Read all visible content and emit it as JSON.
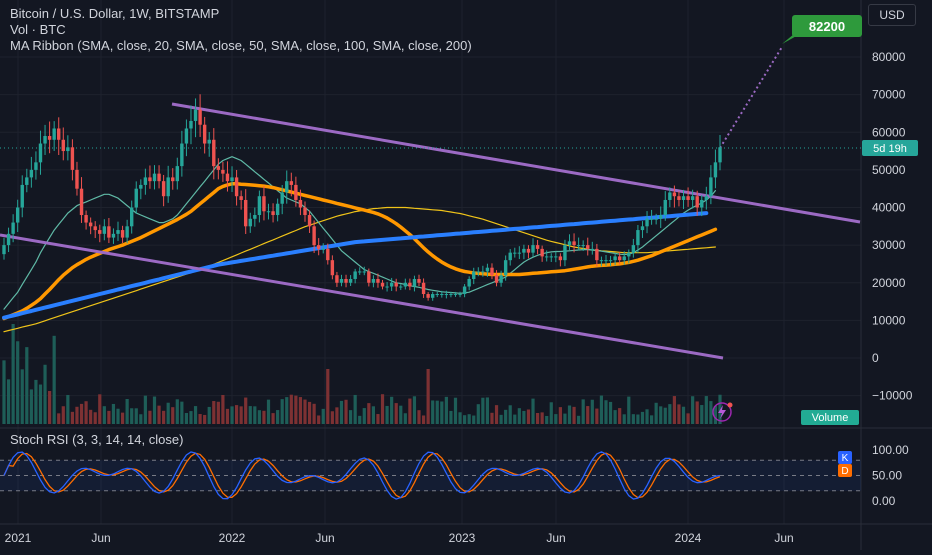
{
  "symbol": {
    "title": "Bitcoin / U.S. Dollar, 1W, BITSTAMP"
  },
  "indicators": {
    "volume": "Vol · BTC",
    "ma_ribbon": "MA Ribbon (SMA, close, 20, SMA, close, 50, SMA, close, 100, SMA, close, 200)",
    "stoch": "Stoch RSI (3, 3, 14, 14, close)"
  },
  "currency_button": "USD",
  "price_axis": [
    "80000",
    "70000",
    "60000",
    "50000",
    "40000",
    "30000",
    "20000",
    "10000",
    "0",
    "−10000"
  ],
  "target_label": "82200",
  "countdown_label": "5d 19h",
  "volume_label": "Volume",
  "stoch_axis": [
    "100.00",
    "50.00",
    "0.00"
  ],
  "stoch_badges": {
    "k": "K",
    "d": "D"
  },
  "time_axis": [
    "2021",
    "Jun",
    "2022",
    "Jun",
    "2023",
    "Jun",
    "2024",
    "Jun"
  ],
  "colors": {
    "up": "#26a69a",
    "down": "#ef5350",
    "channel": "#9c6ac4",
    "ma20": "#5fb9a6",
    "ma50": "#ff9800",
    "ma100": "#f0c419",
    "ma200": "#2a7fff",
    "stoch_k": "#2962ff",
    "stoch_d": "#ff6d00"
  },
  "chart_data": {
    "type": "candlestick",
    "y_range": [
      -15000,
      92000
    ],
    "weekly_close": [
      30000,
      33000,
      36000,
      40000,
      46000,
      48000,
      50000,
      52000,
      57000,
      59000,
      58000,
      61000,
      58000,
      55000,
      56000,
      50000,
      45000,
      38000,
      36000,
      35000,
      34000,
      33000,
      35000,
      32000,
      33000,
      34000,
      32000,
      35000,
      40000,
      45000,
      46000,
      48000,
      47000,
      49000,
      47000,
      43000,
      48000,
      47000,
      51000,
      57000,
      61000,
      63000,
      66000,
      62000,
      57000,
      58000,
      51000,
      50000,
      49000,
      47000,
      48000,
      43000,
      42000,
      35000,
      37000,
      38000,
      43000,
      39000,
      39000,
      38000,
      41000,
      44000,
      47000,
      46000,
      42000,
      40000,
      38000,
      35000,
      30000,
      29000,
      29000,
      26000,
      22000,
      20000,
      21000,
      20000,
      21000,
      23000,
      23000,
      23000,
      20000,
      21000,
      20000,
      19000,
      19000,
      20000,
      19000,
      19000,
      20000,
      19000,
      21000,
      20000,
      17000,
      16000,
      17000,
      17000,
      17000,
      17000,
      17000,
      17000,
      17000,
      19000,
      21000,
      23000,
      23000,
      23000,
      24000,
      22000,
      20000,
      22000,
      26000,
      28000,
      28000,
      28000,
      29000,
      28000,
      30000,
      29000,
      27000,
      27000,
      27000,
      27000,
      26000,
      30000,
      31000,
      30000,
      30000,
      30000,
      29000,
      29000,
      26000,
      26000,
      26000,
      26000,
      27000,
      26000,
      27000,
      28000,
      30000,
      34000,
      35000,
      37000,
      37000,
      37000,
      38000,
      42000,
      44000,
      43000,
      42000,
      43000,
      42000,
      43000,
      40000,
      42000,
      43000,
      48000,
      52000,
      56000
    ],
    "ma20": [
      13000,
      14500,
      16000,
      17500,
      19500,
      21500,
      23500,
      25500,
      28000,
      30000,
      32000,
      34000,
      35500,
      37000,
      38500,
      39500,
      40500,
      41000,
      41500,
      42000,
      42500,
      43000,
      43500,
      43500,
      43000,
      42500,
      41500,
      40500,
      39500,
      38500,
      38000,
      37500,
      37000,
      36500,
      36000,
      36000,
      36500,
      37000,
      38000,
      39500,
      41000,
      42500,
      44000,
      45500,
      47000,
      48500,
      50000,
      51500,
      52500,
      53000,
      53500,
      53000,
      52500,
      51500,
      50500,
      49500,
      48500,
      47500,
      46500,
      45500,
      44500,
      43500,
      42500,
      42000,
      41500,
      41000,
      40000,
      39000,
      37500,
      36000,
      34500,
      33000,
      31500,
      30000,
      28500,
      27500,
      26500,
      25500,
      24500,
      23500,
      23000,
      22500,
      22000,
      21500,
      21000,
      20500,
      20000,
      19800,
      19500,
      19200,
      19000,
      18800,
      18500,
      18200,
      18000,
      17800,
      17600,
      17500,
      17400,
      17300,
      17200,
      17300,
      17500,
      18000,
      18500,
      19000,
      19500,
      20000,
      20500,
      21000,
      21500,
      22500,
      23500,
      24500,
      25500,
      26200,
      26800,
      27300,
      27700,
      28000,
      28200,
      28300,
      28300,
      28400,
      28500,
      28600,
      28700,
      28800,
      28800,
      28700,
      28600,
      28400,
      28200,
      28000,
      27800,
      27600,
      27500,
      27600,
      28000,
      28700,
      29500,
      30500,
      31500,
      32500,
      33500,
      34500,
      35500,
      36500,
      37500,
      38500,
      39300,
      40000,
      40600,
      41200,
      42000,
      43000,
      44500
    ],
    "ma50": [
      10500,
      11000,
      11500,
      12000,
      12500,
      13200,
      14000,
      14800,
      15800,
      17000,
      18200,
      19500,
      20800,
      22000,
      23000,
      24000,
      24800,
      25500,
      26200,
      26800,
      27300,
      27800,
      28300,
      28800,
      29200,
      29600,
      30000,
      30500,
      31000,
      31500,
      32000,
      32600,
      33200,
      33800,
      34400,
      35000,
      35600,
      36200,
      36800,
      37500,
      38200,
      39000,
      40000,
      41000,
      42000,
      43000,
      44000,
      45000,
      45600,
      46000,
      46300,
      46300,
      46200,
      46100,
      46000,
      45900,
      45800,
      45700,
      45500,
      45300,
      45000,
      44700,
      44400,
      44100,
      43800,
      43500,
      43200,
      42900,
      42600,
      42300,
      42000,
      41700,
      41400,
      41100,
      40800,
      40500,
      40200,
      39900,
      39600,
      39300,
      39000,
      38700,
      38300,
      37800,
      37200,
      36500,
      35700,
      34800,
      33800,
      32800,
      31700,
      30500,
      29300,
      28200,
      27200,
      26300,
      25500,
      24800,
      24200,
      23700,
      23300,
      23000,
      22800,
      22600,
      22500,
      22400,
      22300,
      22200,
      22200,
      22200,
      22200,
      22200,
      22200,
      22200,
      22300,
      22400,
      22500,
      22600,
      22700,
      22800,
      22900,
      23000,
      23100,
      23200,
      23400,
      23600,
      23800,
      24000,
      24200,
      24400,
      24500,
      24600,
      24700,
      24800,
      24900,
      25000,
      25200,
      25400,
      25700,
      26000,
      26400,
      26800,
      27200,
      27700,
      28200,
      28700,
      29200,
      29700,
      30200,
      30700,
      31200,
      31700,
      32200,
      32700,
      33200,
      33700,
      34200
    ],
    "ma100": [
      7000,
      7300,
      7600,
      7900,
      8200,
      8500,
      8800,
      9100,
      9500,
      9900,
      10300,
      10700,
      11100,
      11500,
      11900,
      12300,
      12700,
      13100,
      13500,
      13900,
      14300,
      14700,
      15100,
      15500,
      15900,
      16300,
      16700,
      17100,
      17500,
      17900,
      18300,
      18700,
      19100,
      19500,
      19900,
      20300,
      20700,
      21100,
      21500,
      21900,
      22300,
      22700,
      23100,
      23500,
      23900,
      24400,
      24900,
      25400,
      25900,
      26400,
      26900,
      27400,
      27900,
      28400,
      28900,
      29400,
      29900,
      30400,
      30900,
      31400,
      31900,
      32400,
      32900,
      33400,
      33900,
      34400,
      34900,
      35300,
      35700,
      36100,
      36500,
      36900,
      37300,
      37700,
      38000,
      38300,
      38600,
      38900,
      39100,
      39300,
      39500,
      39700,
      39800,
      39900,
      40000,
      40000,
      40000,
      40000,
      40000,
      39900,
      39800,
      39700,
      39600,
      39500,
      39400,
      39300,
      39200,
      39000,
      38800,
      38600,
      38400,
      38100,
      37800,
      37500,
      37200,
      36900,
      36500,
      36100,
      35700,
      35300,
      34900,
      34500,
      34100,
      33700,
      33300,
      32900,
      32500,
      32100,
      31700,
      31300,
      31000,
      30700,
      30400,
      30100,
      29800,
      29500,
      29300,
      29100,
      28900,
      28700,
      28600,
      28500,
      28400,
      28300,
      28200,
      28100,
      28000,
      28000,
      28000,
      28000,
      28000,
      28000,
      28100,
      28200,
      28300,
      28400,
      28500,
      28600,
      28700,
      28800,
      28900,
      29000,
      29100,
      29200,
      29300,
      29400,
      29500
    ],
    "ma200": [
      10700,
      11000,
      11300,
      11600,
      11900,
      12200,
      12500,
      12800,
      13100,
      13400,
      13700,
      14000,
      14300,
      14600,
      14900,
      15200,
      15500,
      15800,
      16100,
      16400,
      16700,
      17000,
      17300,
      17600,
      17900,
      18200,
      18500,
      18800,
      19100,
      19400,
      19700,
      20000,
      20300,
      20600,
      20900,
      21200,
      21500,
      21800,
      22100,
      22400,
      22700,
      23000,
      23300,
      23600,
      23900,
      24200,
      24500,
      24800,
      25000,
      25200,
      25400,
      25600,
      25800,
      26000,
      26200,
      26400,
      26600,
      26800,
      27000,
      27200,
      27400,
      27600,
      27800,
      28000,
      28200,
      28400,
      28600,
      28800,
      29000,
      29200,
      29400,
      29600,
      29800,
      30000,
      30200,
      30400,
      30600,
      30800,
      30900,
      31000,
      31100,
      31200,
      31300,
      31400,
      31500,
      31600,
      31700,
      31800,
      31900,
      32000,
      32100,
      32200,
      32300,
      32400,
      32500,
      32600,
      32700,
      32800,
      32900,
      33000,
      33100,
      33200,
      33300,
      33400,
      33500,
      33600,
      33700,
      33800,
      33900,
      34000,
      34100,
      34200,
      34300,
      34400,
      34500,
      34600,
      34700,
      34800,
      34900,
      35000,
      35100,
      35200,
      35300,
      35400,
      35500,
      35600,
      35700,
      35800,
      35900,
      36000,
      36100,
      36200,
      36300,
      36400,
      36500,
      36600,
      36700,
      36800,
      36900,
      37000,
      37100,
      37200,
      37300,
      37400,
      37500,
      37600,
      37700,
      37800,
      37900,
      38000,
      38100,
      38200,
      38300,
      38400,
      38500
    ],
    "channel_upper": [
      [
        172,
        104
      ],
      [
        860,
        222
      ]
    ],
    "channel_lower": [
      [
        0,
        235
      ],
      [
        723,
        358
      ]
    ],
    "projection": [
      [
        720,
        148
      ],
      [
        782,
        47
      ]
    ]
  }
}
